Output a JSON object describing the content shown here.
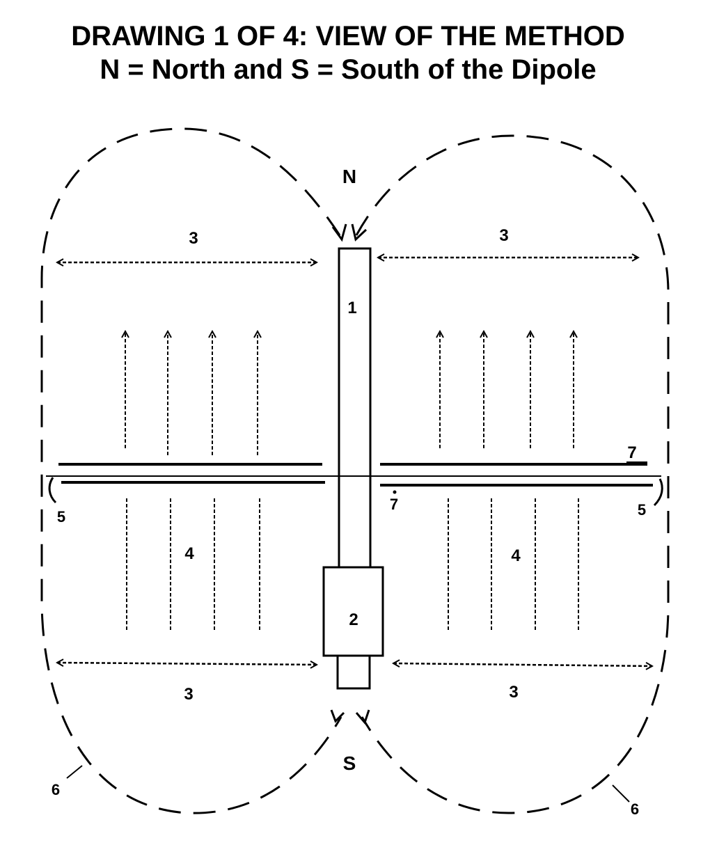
{
  "title": {
    "line1": "DRAWING 1 OF 4: VIEW OF THE METHOD",
    "line2": "N = North and S = South of the Dipole"
  },
  "labels": {
    "north": "N",
    "south": "S",
    "rod": "1",
    "block": "2",
    "dim": "3",
    "field": "4",
    "end": "5",
    "loop": "6",
    "plate": "7"
  },
  "colors": {
    "ink": "#000000",
    "paper": "#ffffff"
  }
}
